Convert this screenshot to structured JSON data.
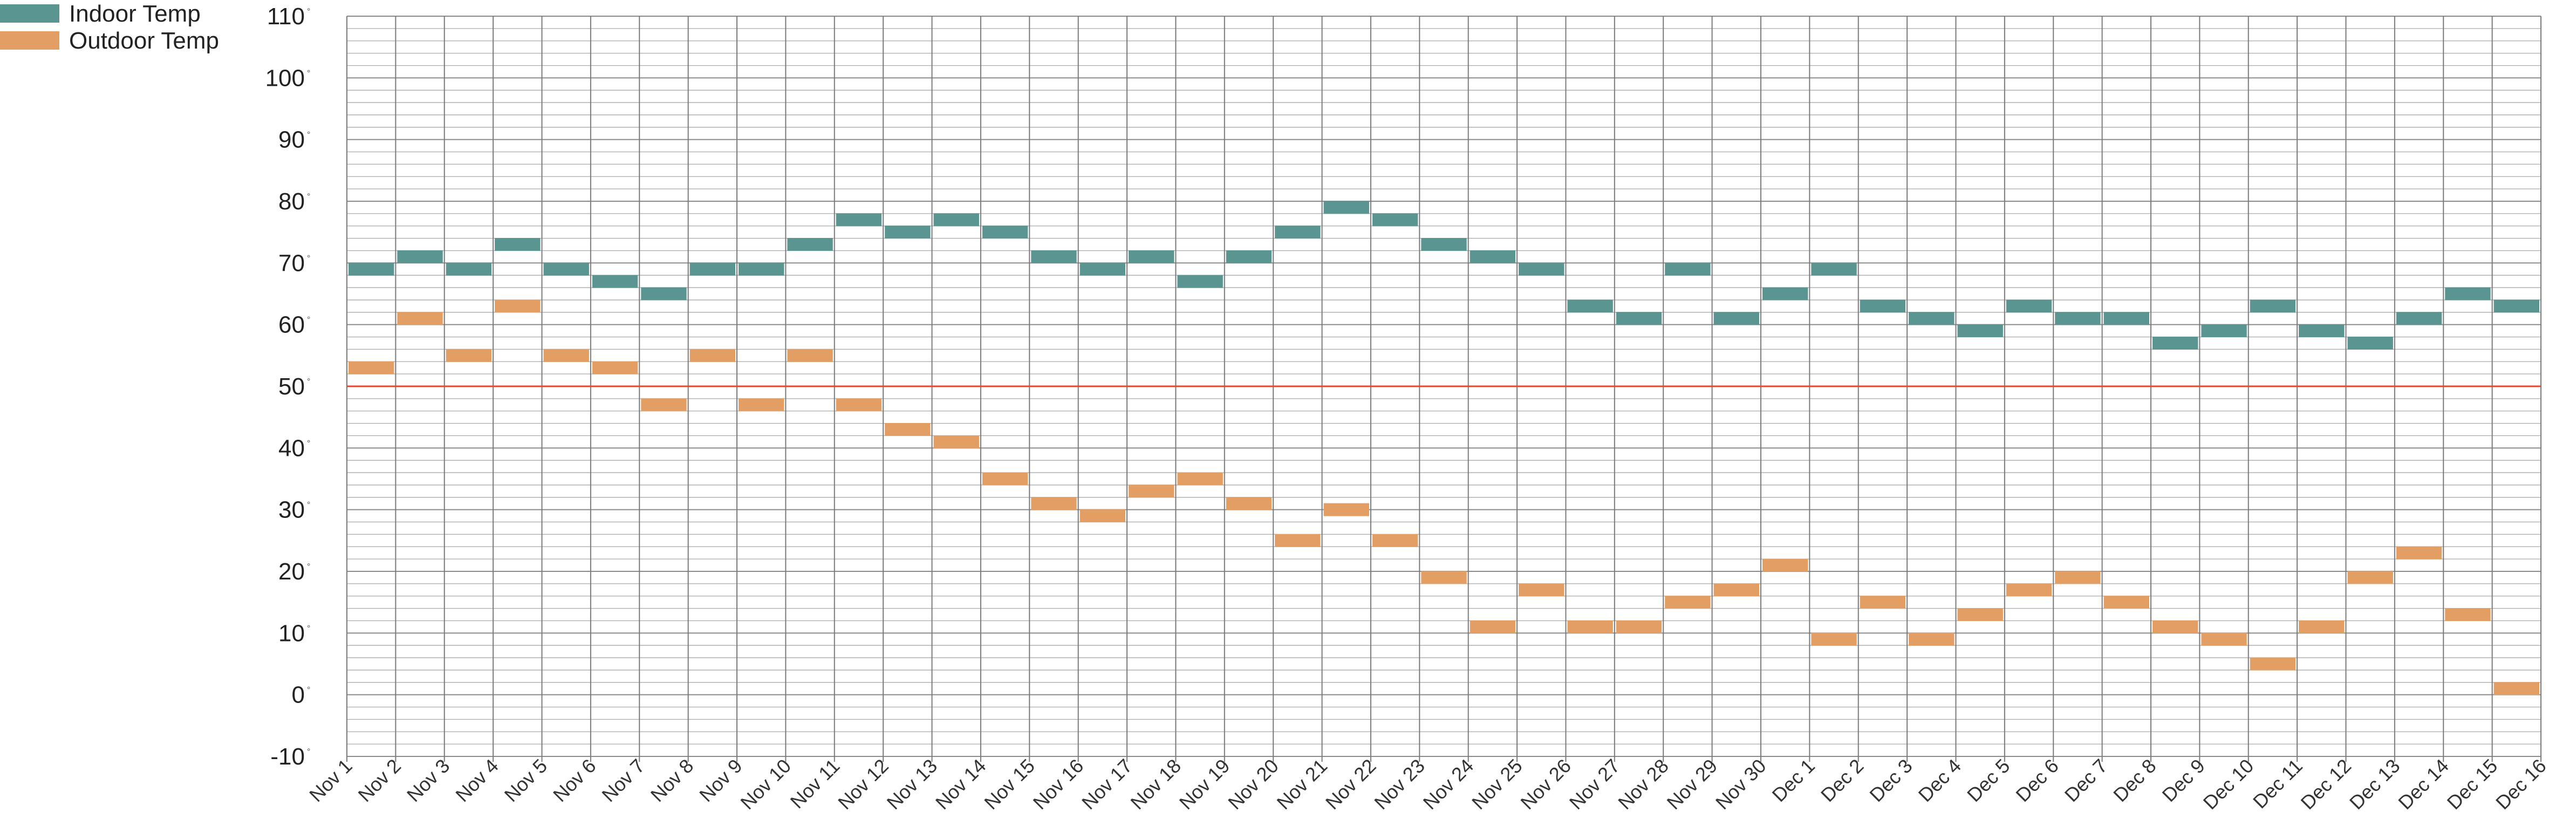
{
  "chart_data": {
    "type": "bar",
    "subtype": "floating-marker",
    "title": "",
    "xlabel": "",
    "ylabel": "",
    "ylim": [
      -10,
      110
    ],
    "yticks": [
      110,
      100,
      90,
      80,
      70,
      60,
      50,
      40,
      30,
      20,
      10,
      0,
      -10
    ],
    "ytick_labels": [
      "110",
      "100",
      "90",
      "80",
      "70",
      "60",
      "50",
      "40",
      "30",
      "20",
      "10",
      "0",
      "-10"
    ],
    "degree_symbol": "°",
    "grid": true,
    "legend_position": "top-left",
    "reference_line": {
      "value": 50,
      "color": "#e8472e"
    },
    "x_boundaries": [
      "Nov 1",
      "Nov 2",
      "Nov 3",
      "Nov 4",
      "Nov 5",
      "Nov 6",
      "Nov 7",
      "Nov 8",
      "Nov 9",
      "Nov 10",
      "Nov 11",
      "Nov 12",
      "Nov 13",
      "Nov 14",
      "Nov 15",
      "Nov 16",
      "Nov 17",
      "Nov 18",
      "Nov 19",
      "Nov 20",
      "Nov 21",
      "Nov 22",
      "Nov 23",
      "Nov 24",
      "Nov 25",
      "Nov 26",
      "Nov 27",
      "Nov 28",
      "Nov 29",
      "Nov 30",
      "Dec 1",
      "Dec 2",
      "Dec 3",
      "Dec 4",
      "Dec 5",
      "Dec 6",
      "Dec 7",
      "Dec 8",
      "Dec 9",
      "Dec 10",
      "Dec 11",
      "Dec 12",
      "Dec 13",
      "Dec 14",
      "Dec 15",
      "Dec 16"
    ],
    "series": [
      {
        "name": "Indoor Temp",
        "color": "#5b9591",
        "values": [
          69,
          71,
          69,
          73,
          69,
          67,
          65,
          69,
          69,
          73,
          77,
          75,
          77,
          75,
          71,
          69,
          71,
          67,
          71,
          75,
          79,
          77,
          73,
          71,
          69,
          63,
          61,
          69,
          61,
          65,
          69,
          63,
          61,
          59,
          63,
          61,
          61,
          57,
          59,
          63,
          59,
          57,
          61,
          65,
          63
        ]
      },
      {
        "name": "Outdoor Temp",
        "color": "#e39e64",
        "values": [
          53,
          61,
          55,
          63,
          55,
          53,
          47,
          55,
          47,
          55,
          47,
          43,
          41,
          35,
          31,
          29,
          33,
          35,
          31,
          25,
          30,
          25,
          19,
          11,
          17,
          11,
          11,
          15,
          17,
          21,
          9,
          15,
          9,
          13,
          17,
          19,
          15,
          11,
          9,
          5,
          11,
          19,
          23,
          13,
          1
        ]
      }
    ]
  }
}
